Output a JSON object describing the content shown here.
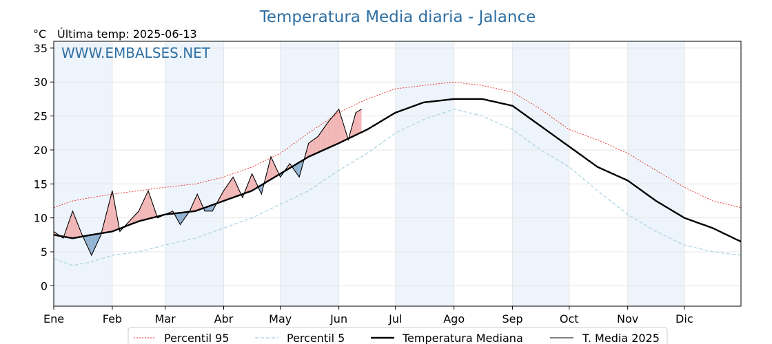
{
  "chart_data": {
    "type": "line",
    "title": "Temperatura Media diaria - Jalance",
    "unit": "°C",
    "last_update": "Última temp: 2025-06-13",
    "watermark": "WWW.EMBALSES.NET",
    "ylim": [
      -3,
      36
    ],
    "yticks": [
      0,
      5,
      10,
      15,
      20,
      25,
      30,
      35
    ],
    "xlim": [
      0,
      364
    ],
    "months": [
      {
        "label": "Ene",
        "day": 0
      },
      {
        "label": "Feb",
        "day": 31
      },
      {
        "label": "Mar",
        "day": 59
      },
      {
        "label": "Abr",
        "day": 90
      },
      {
        "label": "May",
        "day": 120
      },
      {
        "label": "Jun",
        "day": 151
      },
      {
        "label": "Jul",
        "day": 181
      },
      {
        "label": "Ago",
        "day": 212
      },
      {
        "label": "Sep",
        "day": 243
      },
      {
        "label": "Oct",
        "day": 273
      },
      {
        "label": "Nov",
        "day": 304
      },
      {
        "label": "Dic",
        "day": 334
      }
    ],
    "grid": true,
    "legend_position": "bottom",
    "colors": {
      "p95": "#e8281e",
      "p5": "#a8d2e2",
      "median": "#000000",
      "current": "#000000",
      "above": "#f2b4b4",
      "above_dark": "#e04040",
      "below": "#8fb1d0",
      "below_dark": "#2c5f95",
      "shade": "#eef4fb",
      "accent": "#2e6fa3"
    },
    "series": [
      {
        "name": "Percentil 95",
        "x": [
          0,
          10,
          20,
          31,
          45,
          59,
          75,
          90,
          105,
          120,
          135,
          151,
          166,
          181,
          196,
          212,
          227,
          243,
          258,
          273,
          288,
          304,
          319,
          334,
          349,
          364
        ],
        "values": [
          11.5,
          12.5,
          13,
          13.5,
          14,
          14.5,
          15,
          16,
          17.5,
          19.5,
          22.5,
          25.5,
          27.5,
          29,
          29.5,
          30,
          29.5,
          28.5,
          26,
          23,
          21.5,
          19.5,
          17,
          14.5,
          12.5,
          11.5
        ]
      },
      {
        "name": "Percentil 5",
        "x": [
          0,
          10,
          20,
          31,
          45,
          59,
          75,
          90,
          105,
          120,
          135,
          151,
          166,
          181,
          196,
          212,
          227,
          243,
          258,
          273,
          288,
          304,
          319,
          334,
          349,
          364
        ],
        "values": [
          4,
          3,
          3.5,
          4.5,
          5,
          6,
          7,
          8.5,
          10,
          12,
          14,
          17,
          19.5,
          22.5,
          24.5,
          26,
          25,
          23,
          20,
          17.5,
          14,
          10.5,
          8,
          6,
          5,
          4.5
        ]
      },
      {
        "name": "Temperatura Mediana",
        "x": [
          0,
          10,
          20,
          31,
          45,
          59,
          75,
          90,
          105,
          120,
          135,
          151,
          166,
          181,
          196,
          212,
          227,
          243,
          258,
          273,
          288,
          304,
          319,
          334,
          349,
          364
        ],
        "values": [
          7.5,
          7,
          7.5,
          8,
          9.5,
          10.5,
          11,
          12.5,
          14,
          16.5,
          19,
          21,
          23,
          25.5,
          27,
          27.5,
          27.5,
          26.5,
          23.5,
          20.5,
          17.5,
          15.5,
          12.5,
          10,
          8.5,
          6.5
        ]
      },
      {
        "name": "T. Media 2025",
        "x": [
          0,
          5,
          10,
          15,
          20,
          25,
          31,
          35,
          40,
          45,
          50,
          55,
          59,
          63,
          67,
          72,
          76,
          80,
          84,
          90,
          95,
          100,
          105,
          110,
          115,
          120,
          125,
          130,
          135,
          140,
          145,
          151,
          156,
          160,
          163
        ],
        "values": [
          8,
          7,
          11,
          7.5,
          4.5,
          7.5,
          14,
          8,
          9.5,
          11,
          14,
          10,
          10.5,
          11,
          9,
          11,
          13.5,
          11,
          11,
          14,
          16,
          13,
          16.5,
          13.5,
          19,
          16,
          18,
          16,
          21,
          22,
          24,
          26,
          21.5,
          25.5,
          26
        ]
      }
    ]
  }
}
